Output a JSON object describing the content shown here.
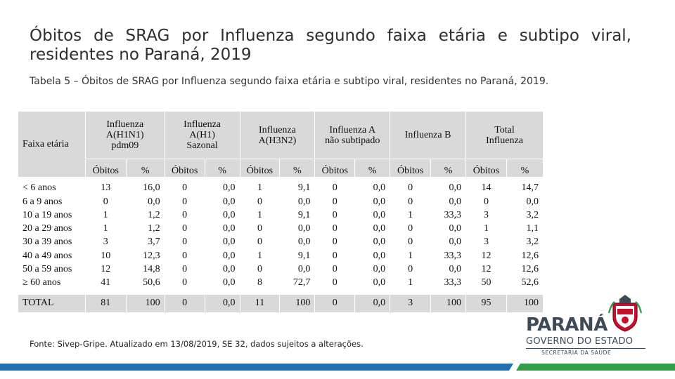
{
  "title": "Óbitos de SRAG por Influenza segundo faixa etária e subtipo viral, residentes no Paraná, 2019",
  "subtitle": "Tabela 5 – Óbitos de SRAG por Influenza segundo faixa etária e subtipo viral, residentes no Paraná, 2019.",
  "table": {
    "age_header": "Faixa etária",
    "groups": [
      {
        "lines": [
          "Influenza",
          "A(H1N1)",
          "pdm09"
        ]
      },
      {
        "lines": [
          "Influenza",
          "A(H1)",
          "Sazonal"
        ]
      },
      {
        "lines": [
          "Influenza",
          "A(H3N2)"
        ]
      },
      {
        "lines": [
          "Influenza A",
          "não subtipado"
        ]
      },
      {
        "lines": [
          "Influenza B"
        ]
      },
      {
        "lines": [
          "Total",
          "Influenza"
        ]
      }
    ],
    "sub_deaths": "Óbitos",
    "sub_pct": "%",
    "rows": [
      {
        "age": "< 6 anos",
        "cells": [
          "13",
          "16,0",
          "0",
          "0,0",
          "1",
          "9,1",
          "0",
          "0,0",
          "0",
          "0,0",
          "14",
          "14,7"
        ]
      },
      {
        "age": "6 a 9 anos",
        "cells": [
          "0",
          "0,0",
          "0",
          "0,0",
          "0",
          "0,0",
          "0",
          "0,0",
          "0",
          "0,0",
          "0",
          "0,0"
        ]
      },
      {
        "age": "10 a 19 anos",
        "cells": [
          "1",
          "1,2",
          "0",
          "0,0",
          "1",
          "9,1",
          "0",
          "0,0",
          "1",
          "33,3",
          "3",
          "3,2"
        ]
      },
      {
        "age": "20 a 29 anos",
        "cells": [
          "1",
          "1,2",
          "0",
          "0,0",
          "0",
          "0,0",
          "0",
          "0,0",
          "0",
          "0,0",
          "1",
          "1,1"
        ]
      },
      {
        "age": "30 a 39 anos",
        "cells": [
          "3",
          "3,7",
          "0",
          "0,0",
          "0",
          "0,0",
          "0",
          "0,0",
          "0",
          "0,0",
          "3",
          "3,2"
        ]
      },
      {
        "age": "40 a 49 anos",
        "cells": [
          "10",
          "12,3",
          "0",
          "0,0",
          "1",
          "9,1",
          "0",
          "0,0",
          "1",
          "33,3",
          "12",
          "12,6"
        ]
      },
      {
        "age": "50 a 59 anos",
        "cells": [
          "12",
          "14,8",
          "0",
          "0,0",
          "0",
          "0,0",
          "0",
          "0,0",
          "0",
          "0,0",
          "12",
          "12,6"
        ]
      },
      {
        "age": "≥ 60 anos",
        "cells": [
          "41",
          "50,6",
          "0",
          "0,0",
          "8",
          "72,7",
          "0",
          "0,0",
          "1",
          "33,3",
          "50",
          "52,6"
        ]
      }
    ],
    "total": {
      "age": "TOTAL",
      "cells": [
        "81",
        "100",
        "0",
        "0,0",
        "11",
        "100",
        "0",
        "0,0",
        "3",
        "100",
        "95",
        "100"
      ]
    }
  },
  "footnote": "Fonte: Sivep-Gripe. Atualizado em 13/08/2019, SE 32, dados sujeitos a alterações.",
  "logo": {
    "name": "PARANÁ",
    "government": "GOVERNO DO ESTADO",
    "department": "SECRETARIA DA SAÚDE"
  },
  "colors": {
    "table_header_bg": "#d9d9d9",
    "bar_blue": "#1f6fb5",
    "bar_green": "#2f9e44",
    "logo_text": "#3d4a57",
    "crest_red": "#c8102e"
  }
}
